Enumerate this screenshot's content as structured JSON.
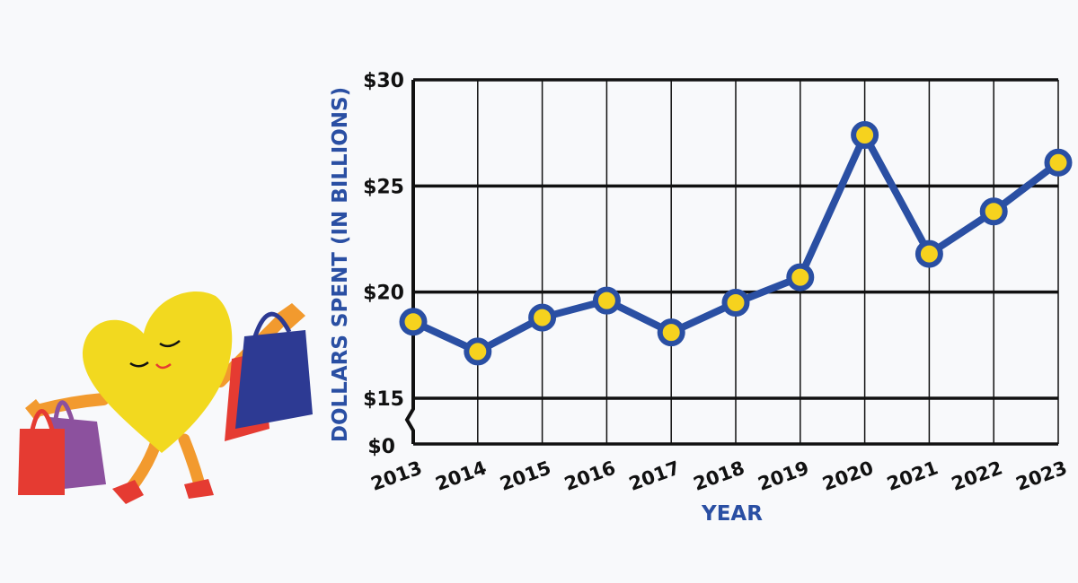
{
  "colors": {
    "line": "#2a4fa3",
    "marker_fill": "#f6d21e",
    "grid": "#111111",
    "axis_title": "#2a4fa3",
    "heart": "#f2d91f",
    "bag_red": "#e53b32",
    "bag_purple": "#8c519e",
    "bag_blue": "#2d3a93",
    "limb": "#f29a2e"
  },
  "chart_data": {
    "type": "line",
    "xlabel": "YEAR",
    "ylabel": "DOLLARS SPENT (IN BILLIONS)",
    "x": [
      "2013",
      "2014",
      "2015",
      "2016",
      "2017",
      "2018",
      "2019",
      "2020",
      "2021",
      "2022",
      "2023"
    ],
    "series": [
      {
        "values": [
          18.6,
          17.2,
          18.8,
          19.6,
          18.1,
          19.5,
          20.7,
          27.4,
          21.8,
          23.8,
          26.1
        ]
      }
    ],
    "y_ticks": [
      {
        "value": 15,
        "label": "$15"
      },
      {
        "value": 20,
        "label": "$20"
      },
      {
        "value": 25,
        "label": "$25"
      },
      {
        "value": 30,
        "label": "$30"
      }
    ],
    "y_zero_label": "$0",
    "ylim": [
      15,
      30
    ],
    "axis_break": true,
    "grid": true,
    "legend": "none"
  }
}
